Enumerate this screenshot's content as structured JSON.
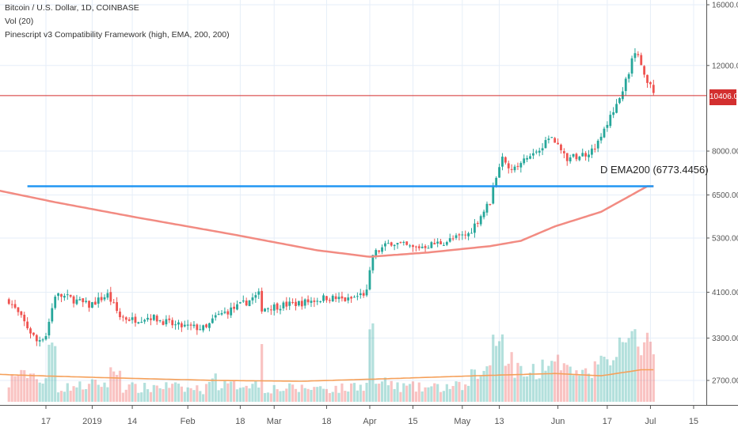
{
  "legend": {
    "line1": "Bitcoin / U.S. Dollar, 1D, COINBASE",
    "line2": "Vol (20)",
    "line3": "Pinescript v3 Compatibility Framework (high, EMA, 200, 200)"
  },
  "ema_label": "D EMA200 (6773.4456)",
  "price_tag": "10406.00",
  "colors": {
    "up": "#26a69a",
    "down": "#ef5350",
    "ema": "#f28b82",
    "hline": "#2196f3",
    "vol_ma": "#f5a05a",
    "price_line": "#d32f2f",
    "grid": "#e6eef8"
  },
  "chart_data": {
    "type": "candlestick",
    "y_scale": "log",
    "ylim": [
      2400,
      16000
    ],
    "y_ticks": [
      "16000.00",
      "12000.00",
      "10406.00",
      "8000.00",
      "6500.00",
      "5300.00",
      "4100.00",
      "3300.00",
      "2700.00"
    ],
    "y_tick_values": [
      16000,
      12000,
      10406,
      8000,
      6500,
      5300,
      4100,
      3300,
      2700
    ],
    "x_ticks": [
      "17",
      "2019",
      "14",
      "Feb",
      "18",
      "Mar",
      "18",
      "Apr",
      "15",
      "May",
      "13",
      "Jun",
      "17",
      "Jul",
      "15"
    ],
    "x_tick_dates": [
      "2018-12-17",
      "2019-01-01",
      "2019-01-14",
      "2019-02-01",
      "2019-02-18",
      "2019-03-01",
      "2019-03-18",
      "2019-04-01",
      "2019-04-15",
      "2019-05-01",
      "2019-05-13",
      "2019-06-01",
      "2019-06-17",
      "2019-07-01",
      "2019-07-15"
    ],
    "close_path": [
      [
        "2018-12-05",
        3950
      ],
      [
        "2018-12-10",
        3550
      ],
      [
        "2018-12-14",
        3250
      ],
      [
        "2018-12-17",
        3350
      ],
      [
        "2018-12-20",
        4050
      ],
      [
        "2018-12-24",
        4000
      ],
      [
        "2018-12-31",
        3850
      ],
      [
        "2019-01-06",
        4050
      ],
      [
        "2019-01-10",
        3650
      ],
      [
        "2019-01-14",
        3600
      ],
      [
        "2019-01-20",
        3650
      ],
      [
        "2019-01-28",
        3500
      ],
      [
        "2019-02-07",
        3450
      ],
      [
        "2019-02-10",
        3650
      ],
      [
        "2019-02-18",
        3850
      ],
      [
        "2019-02-24",
        4050
      ],
      [
        "2019-02-25",
        3800
      ],
      [
        "2019-03-03",
        3850
      ],
      [
        "2019-03-10",
        3900
      ],
      [
        "2019-03-18",
        4000
      ],
      [
        "2019-03-25",
        3950
      ],
      [
        "2019-03-31",
        4100
      ],
      [
        "2019-04-02",
        4900
      ],
      [
        "2019-04-08",
        5200
      ],
      [
        "2019-04-15",
        5050
      ],
      [
        "2019-04-25",
        5200
      ],
      [
        "2019-05-03",
        5400
      ],
      [
        "2019-05-10",
        6300
      ],
      [
        "2019-05-12",
        7100
      ],
      [
        "2019-05-14",
        7900
      ],
      [
        "2019-05-17",
        7300
      ],
      [
        "2019-05-24",
        7900
      ],
      [
        "2019-05-30",
        8600
      ],
      [
        "2019-06-04",
        7700
      ],
      [
        "2019-06-10",
        7900
      ],
      [
        "2019-06-14",
        8300
      ],
      [
        "2019-06-17",
        9100
      ],
      [
        "2019-06-22",
        10700
      ],
      [
        "2019-06-26",
        12800
      ],
      [
        "2019-06-28",
        12100
      ],
      [
        "2019-07-02",
        10406
      ]
    ],
    "ema200_path": [
      [
        "2018-12-01",
        6650
      ],
      [
        "2018-12-20",
        6280
      ],
      [
        "2019-01-15",
        5850
      ],
      [
        "2019-02-15",
        5400
      ],
      [
        "2019-03-15",
        5000
      ],
      [
        "2019-04-01",
        4850
      ],
      [
        "2019-04-20",
        4950
      ],
      [
        "2019-05-10",
        5100
      ],
      [
        "2019-05-20",
        5230
      ],
      [
        "2019-05-31",
        5600
      ],
      [
        "2019-06-15",
        6000
      ],
      [
        "2019-06-30",
        6773.4456
      ]
    ],
    "hline": {
      "value": 6773.4456,
      "from": "2018-12-11",
      "to": "2019-07-02"
    },
    "last_price": 10406,
    "volume_ma_path": [
      [
        "2018-12-01",
        2780
      ],
      [
        "2018-12-15",
        2760
      ],
      [
        "2019-01-10",
        2730
      ],
      [
        "2019-02-10",
        2700
      ],
      [
        "2019-03-10",
        2690
      ],
      [
        "2019-04-05",
        2720
      ],
      [
        "2019-05-05",
        2760
      ],
      [
        "2019-05-31",
        2790
      ],
      [
        "2019-06-15",
        2760
      ],
      [
        "2019-06-28",
        2840
      ]
    ]
  }
}
